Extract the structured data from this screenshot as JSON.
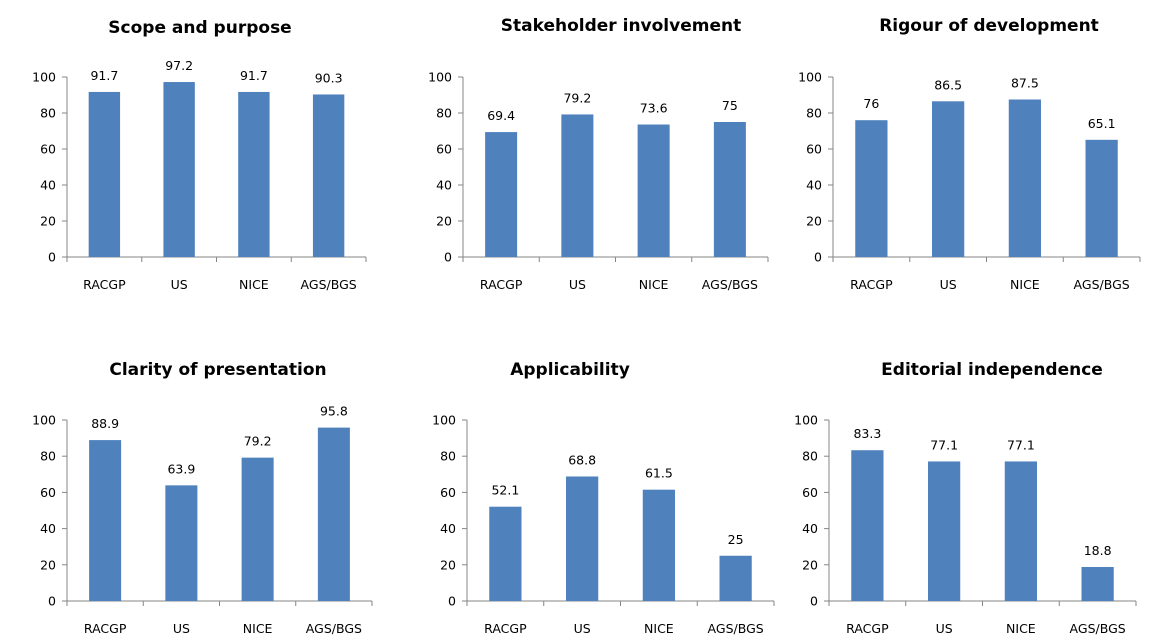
{
  "colors": {
    "bar": "#4F81BD",
    "axis": "#868686",
    "text": "#000000",
    "background": "#ffffff"
  },
  "chart_data": [
    {
      "type": "bar",
      "title": "Scope and purpose",
      "categories": [
        "RACGP",
        "US",
        "NICE",
        "AGS/BGS"
      ],
      "values": [
        91.7,
        97.2,
        91.7,
        90.3
      ],
      "ylim": [
        0,
        100
      ],
      "yticks": [
        "0",
        "20",
        "40",
        "60",
        "80",
        "100"
      ],
      "data_labels": [
        "91.7",
        "97.2",
        "91.7",
        "90.3"
      ],
      "xlabel": "",
      "ylabel": "",
      "grid": false,
      "legend": "none"
    },
    {
      "type": "bar",
      "title": "Stakeholder involvement",
      "categories": [
        "RACGP",
        "US",
        "NICE",
        "AGS/BGS"
      ],
      "values": [
        69.4,
        79.2,
        73.6,
        75
      ],
      "ylim": [
        0,
        100
      ],
      "yticks": [
        "0",
        "20",
        "40",
        "60",
        "80",
        "100"
      ],
      "data_labels": [
        "69.4",
        "79.2",
        "73.6",
        "75"
      ],
      "xlabel": "",
      "ylabel": "",
      "grid": false,
      "legend": "none"
    },
    {
      "type": "bar",
      "title": "Rigour of development",
      "categories": [
        "RACGP",
        "US",
        "NICE",
        "AGS/BGS"
      ],
      "values": [
        76,
        86.5,
        87.5,
        65.1
      ],
      "ylim": [
        0,
        100
      ],
      "yticks": [
        "0",
        "20",
        "40",
        "60",
        "80",
        "100"
      ],
      "data_labels": [
        "76",
        "86.5",
        "87.5",
        "65.1"
      ],
      "xlabel": "",
      "ylabel": "",
      "grid": false,
      "legend": "none"
    },
    {
      "type": "bar",
      "title": "Clarity of presentation",
      "categories": [
        "RACGP",
        "US",
        "NICE",
        "AGS/BGS"
      ],
      "values": [
        88.9,
        63.9,
        79.2,
        95.8
      ],
      "ylim": [
        0,
        100
      ],
      "yticks": [
        "0",
        "20",
        "40",
        "60",
        "80",
        "100"
      ],
      "data_labels": [
        "88.9",
        "63.9",
        "79.2",
        "95.8"
      ],
      "xlabel": "",
      "ylabel": "",
      "grid": false,
      "legend": "none"
    },
    {
      "type": "bar",
      "title": "Applicability",
      "categories": [
        "RACGP",
        "US",
        "NICE",
        "AGS/BGS"
      ],
      "values": [
        52.1,
        68.8,
        61.5,
        25
      ],
      "ylim": [
        0,
        100
      ],
      "yticks": [
        "0",
        "20",
        "40",
        "60",
        "80",
        "100"
      ],
      "data_labels": [
        "52.1",
        "68.8",
        "61.5",
        "25"
      ],
      "xlabel": "",
      "ylabel": "",
      "grid": false,
      "legend": "none"
    },
    {
      "type": "bar",
      "title": "Editorial independence",
      "categories": [
        "RACGP",
        "US",
        "NICE",
        "AGS/BGS"
      ],
      "values": [
        83.3,
        77.1,
        77.1,
        18.8
      ],
      "ylim": [
        0,
        100
      ],
      "yticks": [
        "0",
        "20",
        "40",
        "60",
        "80",
        "100"
      ],
      "data_labels": [
        "83.3",
        "77.1",
        "77.1",
        "18.8"
      ],
      "xlabel": "",
      "ylabel": "",
      "grid": false,
      "legend": "none"
    }
  ]
}
